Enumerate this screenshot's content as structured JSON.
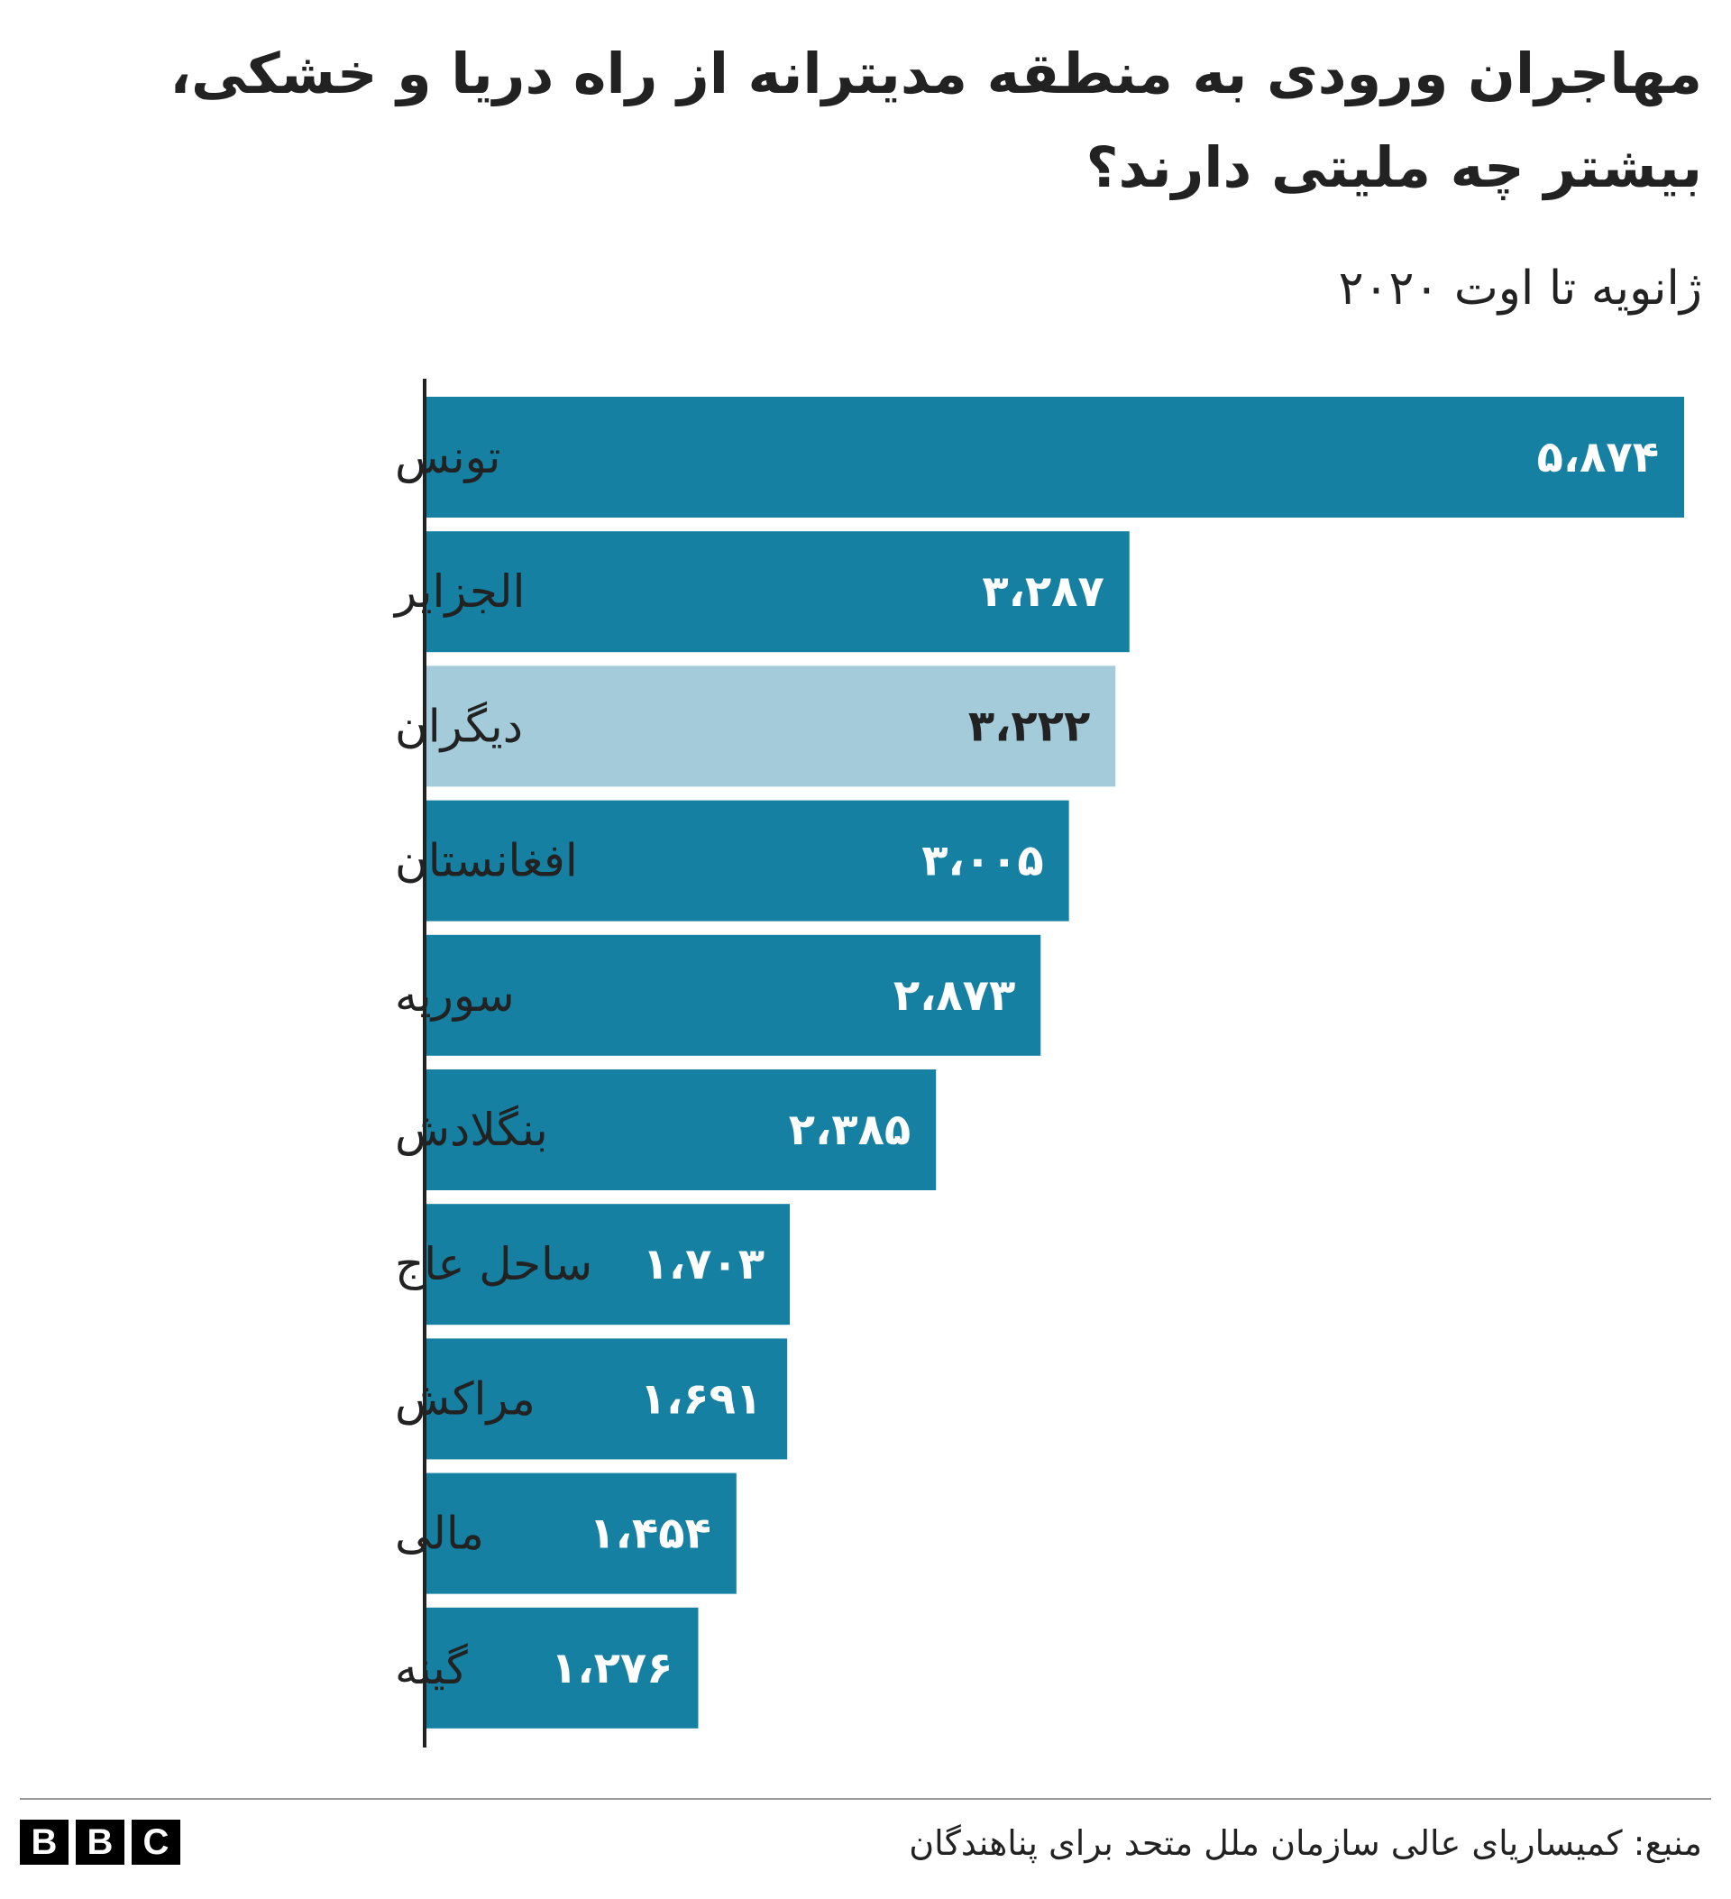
{
  "header": {
    "title": "مهاجران ورودی به منطقه مدیترانه از راه دریا و خشکی، بیشتر چه ملیتی دارند؟",
    "subtitle": "ژانویه تا اوت ۲۰۲۰"
  },
  "chart_data": {
    "type": "bar",
    "orientation": "horizontal",
    "categories": [
      "تونس",
      "الجزایر",
      "دیگران",
      "افغانستان",
      "سوریه",
      "بنگلادش",
      "ساحل عاج",
      "مراکش",
      "مالی",
      "گینه"
    ],
    "values": [
      5874,
      3287,
      3222,
      3005,
      2873,
      2385,
      1703,
      1691,
      1454,
      1276
    ],
    "value_labels": [
      "۵،۸۷۴",
      "۳،۲۸۷",
      "۳،۲۲۲",
      "۳،۰۰۵",
      "۲،۸۷۳",
      "۲،۳۸۵",
      "۱،۷۰۳",
      "۱،۶۹۱",
      "۱،۴۵۴",
      "۱،۲۷۶"
    ],
    "highlight": [
      "dark",
      "dark",
      "light",
      "dark",
      "dark",
      "dark",
      "dark",
      "dark",
      "dark",
      "dark"
    ],
    "colors": {
      "dark": "#1580a1",
      "light": "#a3cbd9",
      "label_on_dark": "#ffffff",
      "label_on_light": "#222222",
      "axis": "#222222"
    },
    "xlim": [
      0,
      5874
    ],
    "grid": false,
    "legend": "none"
  },
  "footer": {
    "source": "منبع: کمیساریای عالی سازمان ملل متحد برای پناهندگان",
    "logo_letters": [
      "B",
      "B",
      "C"
    ]
  }
}
